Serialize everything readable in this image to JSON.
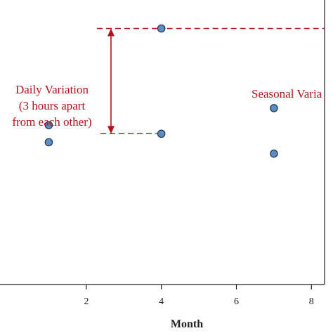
{
  "chart_data": {
    "type": "scatter",
    "xlabel": "Month",
    "ylabel": "",
    "title": "",
    "xlim": [
      -0.3,
      8.35
    ],
    "ylim": [
      0,
      10
    ],
    "xticks": [
      2,
      4,
      6,
      8
    ],
    "tick_labels": [
      "2",
      "4",
      "6",
      "8"
    ],
    "grid": false,
    "point_color": "#5b8cc4",
    "point_edge": "#1f3550",
    "annotation_color": "#b3121b",
    "points": [
      {
        "x": 1,
        "y": 5.6
      },
      {
        "x": 1,
        "y": 5.0
      },
      {
        "x": 4,
        "y": 9.0
      },
      {
        "x": 4,
        "y": 5.3
      },
      {
        "x": 7,
        "y": 6.2
      },
      {
        "x": 7,
        "y": 4.6
      }
    ],
    "annotations": {
      "daily": {
        "lines": [
          "Daily Variation",
          "(3 hours apart",
          "from each other)"
        ],
        "y_top": 9.0,
        "y_bottom": 5.3
      },
      "seasonal": {
        "lines": [
          "Seasonal Varia"
        ]
      }
    }
  }
}
